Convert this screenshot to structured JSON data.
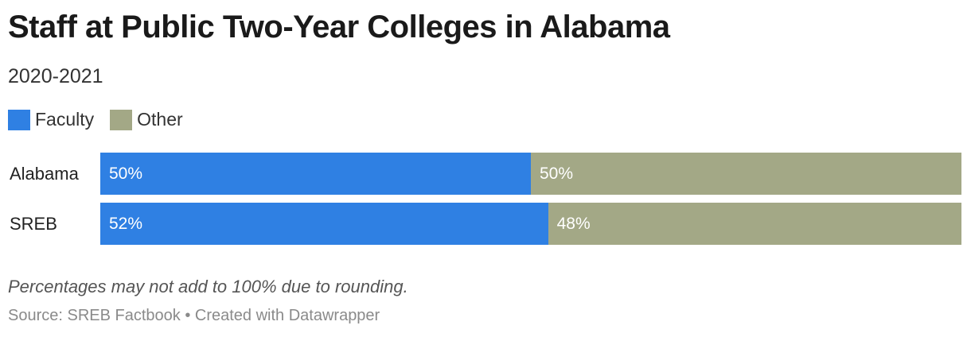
{
  "header": {
    "title": "Staff at Public Two-Year Colleges in Alabama",
    "subtitle": "2020-2021"
  },
  "legend": {
    "items": [
      {
        "label": "Faculty",
        "color": "#2f80e3"
      },
      {
        "label": "Other",
        "color": "#a3a886"
      }
    ]
  },
  "chart_data": {
    "type": "bar",
    "orientation": "horizontal",
    "stacked": true,
    "categories": [
      "Alabama",
      "SREB"
    ],
    "series": [
      {
        "name": "Faculty",
        "values": [
          50,
          52
        ],
        "labels": [
          "50%",
          "52%"
        ],
        "color": "#2f80e3"
      },
      {
        "name": "Other",
        "values": [
          50,
          48
        ],
        "labels": [
          "50%",
          "48%"
        ],
        "color": "#a3a886"
      }
    ],
    "xlim": [
      0,
      100
    ],
    "grid": false,
    "legend_position": "top-left"
  },
  "footer": {
    "note": "Percentages may not add to 100% due to rounding.",
    "source": "Source: SREB Factbook • Created with Datawrapper"
  }
}
